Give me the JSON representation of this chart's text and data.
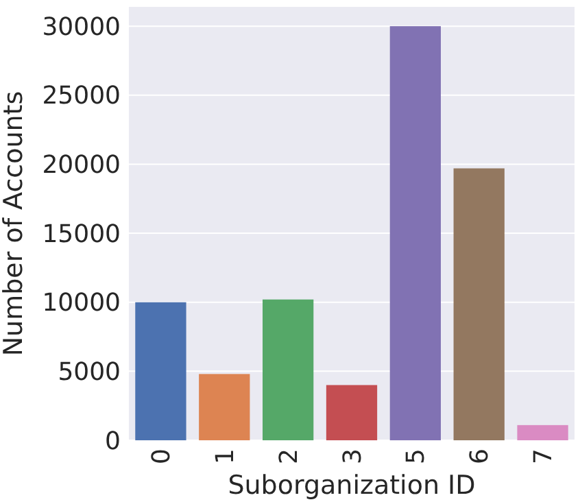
{
  "chart_data": {
    "type": "bar",
    "xlabel": "Suborganization ID",
    "ylabel": "Number of Accounts",
    "categories": [
      "0",
      "1",
      "2",
      "3",
      "5",
      "6",
      "7"
    ],
    "values": [
      10000,
      4800,
      10200,
      4000,
      30000,
      19700,
      1100
    ],
    "colors": [
      "#4c72b0",
      "#dd8452",
      "#55a868",
      "#c44e52",
      "#8172b3",
      "#937860",
      "#da8bc3"
    ],
    "ylim": [
      0,
      31400
    ],
    "yticks": [
      0,
      5000,
      10000,
      15000,
      20000,
      25000,
      30000
    ],
    "grid": "y"
  }
}
